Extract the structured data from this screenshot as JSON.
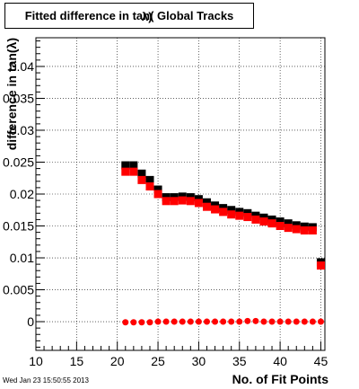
{
  "chart_data": {
    "type": "scatter",
    "title": "Fitted difference in tan( Global Tracks",
    "title_overlay_glyph": "λ)",
    "xlabel": "No. of Fit Points",
    "ylabel": "difference in tan(λ)",
    "xlim": [
      10,
      45.5
    ],
    "ylim": [
      -0.0045,
      0.0445
    ],
    "xticks": [
      10,
      15,
      20,
      25,
      30,
      35,
      40,
      45
    ],
    "xtick_labels": [
      "10",
      "15",
      "20",
      "25",
      "30",
      "35",
      "40",
      "45"
    ],
    "yticks": [
      0,
      0.005,
      0.01,
      0.015,
      0.02,
      0.025,
      0.03,
      0.035,
      0.04
    ],
    "ytick_labels": [
      "0",
      "0.005",
      "0.01",
      "0.015",
      "0.02",
      "0.025",
      "0.03",
      "0.035",
      "0.04"
    ],
    "grid": true,
    "series": [
      {
        "marker": "square",
        "color": "#000000",
        "x": [
          21,
          22,
          23,
          24,
          25,
          26,
          27,
          28,
          29,
          30,
          31,
          32,
          33,
          34,
          35,
          36,
          37,
          38,
          39,
          40,
          41,
          42,
          43,
          44,
          45
        ],
        "y": [
          0.0245,
          0.0245,
          0.0232,
          0.0222,
          0.0207,
          0.0195,
          0.0195,
          0.0196,
          0.0195,
          0.0192,
          0.0187,
          0.0182,
          0.0178,
          0.0175,
          0.0172,
          0.017,
          0.0166,
          0.0163,
          0.016,
          0.0157,
          0.0154,
          0.0151,
          0.0149,
          0.0148,
          0.0093
        ]
      },
      {
        "marker": "square",
        "color": "#ff0000",
        "x": [
          21,
          22,
          23,
          24,
          25,
          26,
          27,
          28,
          29,
          30,
          31,
          32,
          33,
          34,
          35,
          36,
          37,
          38,
          39,
          40,
          41,
          42,
          43,
          44,
          45
        ],
        "y": [
          0.0235,
          0.0235,
          0.0222,
          0.0212,
          0.02,
          0.0189,
          0.0189,
          0.019,
          0.0189,
          0.0186,
          0.018,
          0.0176,
          0.0172,
          0.0168,
          0.0166,
          0.0164,
          0.016,
          0.0157,
          0.0154,
          0.015,
          0.0147,
          0.0145,
          0.0143,
          0.0143,
          0.0088
        ]
      },
      {
        "marker": "circle",
        "color": "#ff0000",
        "x": [
          21,
          22,
          23,
          24,
          25,
          26,
          27,
          28,
          29,
          30,
          31,
          32,
          33,
          34,
          35,
          36,
          37,
          38,
          39,
          40,
          41,
          42,
          43,
          44,
          45
        ],
        "y": [
          -0.0001,
          -0.0001,
          -0.0001,
          -0.0001,
          0.0,
          0.0,
          0.0,
          0.0,
          0.0,
          0.0,
          0.0,
          0.0,
          0.0,
          0.0,
          0.0,
          0.0001,
          0.0001,
          0.0,
          0.0,
          0.0,
          0.0,
          0.0,
          0.0,
          0.0,
          0.0
        ]
      }
    ]
  },
  "timestamp": "Wed Jan 23 15:50:55 2013"
}
